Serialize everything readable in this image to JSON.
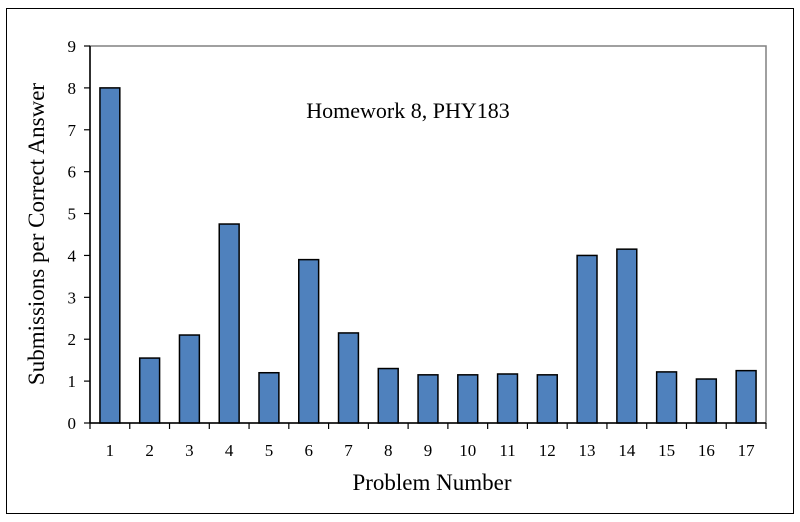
{
  "chart_data": {
    "type": "bar",
    "title": "Homework 8, PHY183",
    "xlabel": "Problem Number",
    "ylabel": "Submissions per Correct Answer",
    "categories": [
      "1",
      "2",
      "3",
      "4",
      "5",
      "6",
      "7",
      "8",
      "9",
      "10",
      "11",
      "12",
      "13",
      "14",
      "15",
      "16",
      "17"
    ],
    "values": [
      8.0,
      1.55,
      2.1,
      4.75,
      1.2,
      3.9,
      2.15,
      1.3,
      1.15,
      1.15,
      1.17,
      1.15,
      4.0,
      4.15,
      1.22,
      1.05,
      1.25
    ],
    "ylim": [
      0,
      9
    ],
    "yticks": [
      "0",
      "1",
      "2",
      "3",
      "4",
      "5",
      "6",
      "7",
      "8",
      "9"
    ],
    "grid": false,
    "legend": "none",
    "colors": {
      "bar_fill": "#4f81bd",
      "bar_stroke": "#000000",
      "plot_border": "#808080"
    }
  }
}
